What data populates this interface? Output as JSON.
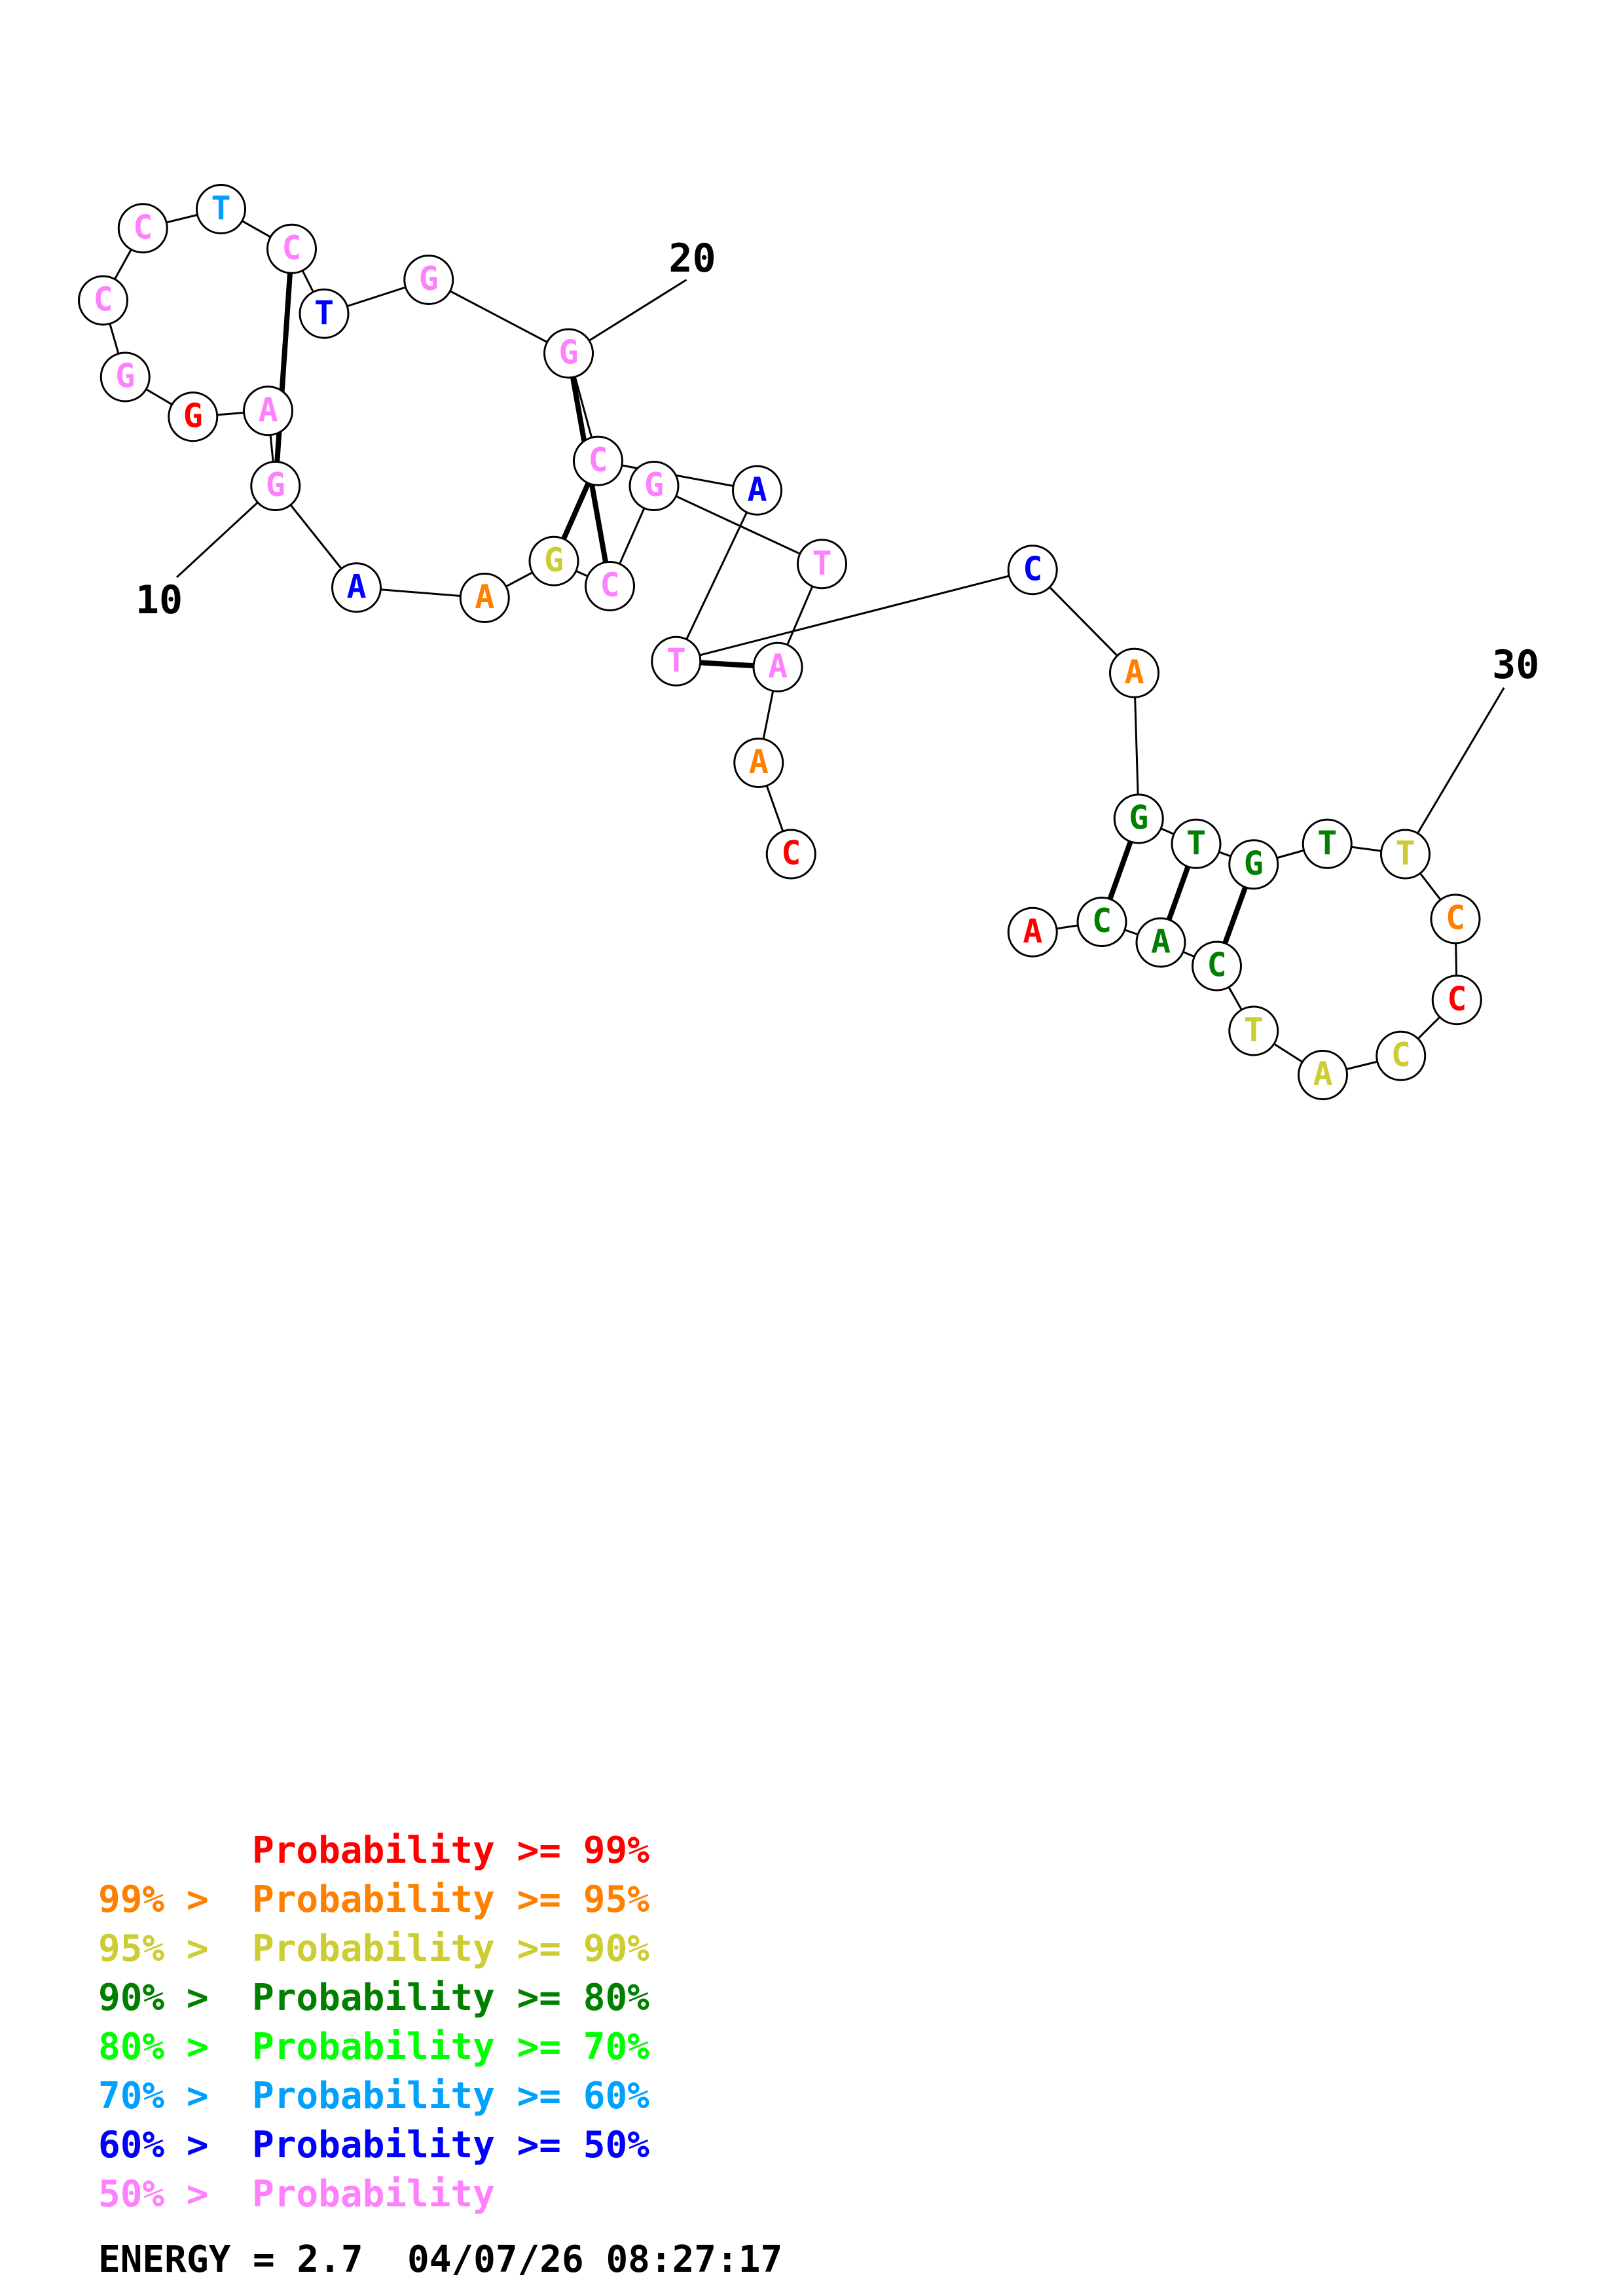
{
  "colors": {
    "p99": "#ff0000",
    "p95": "#ff7f00",
    "p90": "#cccc33",
    "p80": "#007f00",
    "p70": "#00ff00",
    "p60": "#00a0ff",
    "p50": "#0000ff",
    "plow": "#ff80ff"
  },
  "nucleotides": [
    {
      "base": "C",
      "prob": "p99"
    },
    {
      "base": "A",
      "prob": "p95"
    },
    {
      "base": "A",
      "prob": "plow"
    },
    {
      "base": "T",
      "prob": "plow"
    },
    {
      "base": "G",
      "prob": "plow"
    },
    {
      "base": "C",
      "prob": "plow"
    },
    {
      "base": "G",
      "prob": "p90"
    },
    {
      "base": "A",
      "prob": "p95"
    },
    {
      "base": "A",
      "prob": "p50"
    },
    {
      "base": "G",
      "prob": "plow"
    },
    {
      "base": "A",
      "prob": "plow"
    },
    {
      "base": "G",
      "prob": "p99"
    },
    {
      "base": "G",
      "prob": "plow"
    },
    {
      "base": "C",
      "prob": "plow"
    },
    {
      "base": "C",
      "prob": "plow"
    },
    {
      "base": "T",
      "prob": "p60"
    },
    {
      "base": "C",
      "prob": "plow"
    },
    {
      "base": "T",
      "prob": "p50"
    },
    {
      "base": "G",
      "prob": "plow"
    },
    {
      "base": "G",
      "prob": "plow"
    },
    {
      "base": "C",
      "prob": "plow"
    },
    {
      "base": "A",
      "prob": "p50"
    },
    {
      "base": "T",
      "prob": "plow"
    },
    {
      "base": "C",
      "prob": "p50"
    },
    {
      "base": "A",
      "prob": "p95"
    },
    {
      "base": "G",
      "prob": "p80"
    },
    {
      "base": "T",
      "prob": "p80"
    },
    {
      "base": "G",
      "prob": "p80"
    },
    {
      "base": "T",
      "prob": "p80"
    },
    {
      "base": "T",
      "prob": "p90"
    },
    {
      "base": "C",
      "prob": "p95"
    },
    {
      "base": "C",
      "prob": "p99"
    },
    {
      "base": "C",
      "prob": "p90"
    },
    {
      "base": "A",
      "prob": "p90"
    },
    {
      "base": "T",
      "prob": "p90"
    },
    {
      "base": "C",
      "prob": "p80"
    },
    {
      "base": "A",
      "prob": "p80"
    },
    {
      "base": "C",
      "prob": "p80"
    },
    {
      "base": "A",
      "prob": "p99"
    }
  ],
  "pairs": [
    [
      3,
      23
    ],
    [
      6,
      20
    ],
    [
      7,
      21
    ],
    [
      10,
      17
    ],
    [
      26,
      38
    ],
    [
      27,
      37
    ],
    [
      28,
      36
    ]
  ],
  "index_labels": [
    {
      "text": "10",
      "at": 10
    },
    {
      "text": "20",
      "at": 20
    },
    {
      "text": "30",
      "at": 30
    }
  ],
  "legend": [
    {
      "prefix": "",
      "text": "Probability >= 99%",
      "prob": "p99"
    },
    {
      "prefix": "99% > ",
      "text": "Probability >= 95%",
      "prob": "p95"
    },
    {
      "prefix": "95% > ",
      "text": "Probability >= 90%",
      "prob": "p90"
    },
    {
      "prefix": "90% > ",
      "text": "Probability >= 80%",
      "prob": "p80"
    },
    {
      "prefix": "80% > ",
      "text": "Probability >= 70%",
      "prob": "p70"
    },
    {
      "prefix": "70% > ",
      "text": "Probability >= 60%",
      "prob": "p60"
    },
    {
      "prefix": "60% > ",
      "text": "Probability >= 50%",
      "prob": "p50"
    },
    {
      "prefix": "50% > ",
      "text": "Probability",
      "prob": "plow"
    }
  ],
  "energy_line": "ENERGY = 2.7  04/07/26 08:27:17"
}
